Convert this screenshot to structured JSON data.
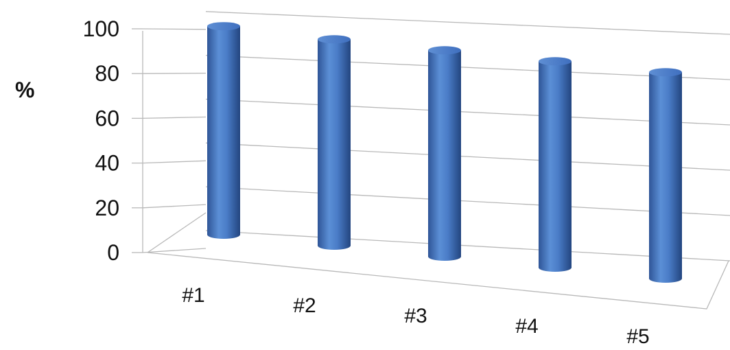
{
  "chart_data": {
    "type": "bar",
    "style": "3d-cylinder",
    "categories": [
      "#1",
      "#2",
      "#3",
      "#4",
      "#5"
    ],
    "values": [
      98,
      97,
      97,
      97,
      97
    ],
    "title": "",
    "xlabel": "",
    "ylabel": "%",
    "ylim": [
      0,
      100
    ],
    "yticks": [
      "0",
      "20",
      "40",
      "60",
      "80",
      "100"
    ],
    "grid": true,
    "legend": "none",
    "bar_color": "#4472C4"
  }
}
